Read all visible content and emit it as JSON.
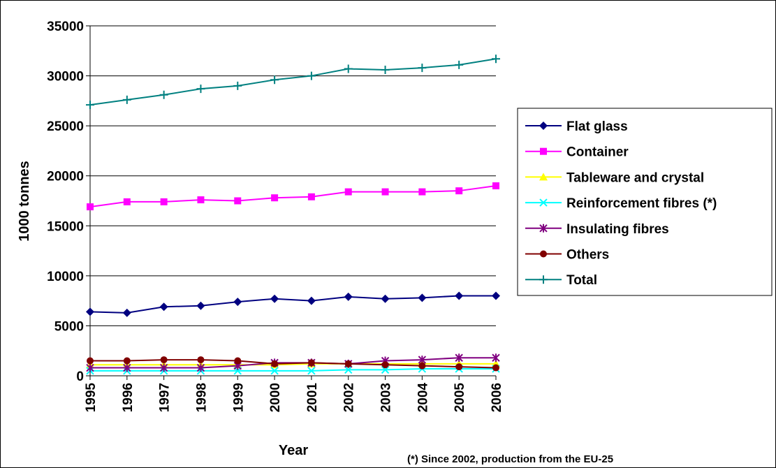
{
  "chart_data": {
    "type": "line",
    "xlabel": "Year",
    "ylabel": "1000 tonnes",
    "ylim": [
      0,
      35000
    ],
    "yticks": [
      0,
      5000,
      10000,
      15000,
      20000,
      25000,
      30000,
      35000
    ],
    "grid": "horizontal",
    "legend": "right",
    "x": [
      "1995",
      "1996",
      "1997",
      "1998",
      "1999",
      "2000",
      "2001",
      "2002",
      "2003",
      "2004",
      "2005",
      "2006"
    ],
    "series": [
      {
        "name": "Flat glass",
        "color": "#000080",
        "marker": "diamond",
        "values": [
          6400,
          6300,
          6900,
          7000,
          7400,
          7700,
          7500,
          7900,
          7700,
          7800,
          8000,
          8000
        ]
      },
      {
        "name": "Container",
        "color": "#ff00ff",
        "marker": "square",
        "values": [
          16900,
          17400,
          17400,
          17600,
          17500,
          17800,
          17900,
          18400,
          18400,
          18400,
          18500,
          19000
        ]
      },
      {
        "name": "Tableware and crystal",
        "color": "#ffff00",
        "marker": "triangle",
        "values": [
          1100,
          1100,
          1100,
          1100,
          1100,
          1100,
          1200,
          1200,
          1200,
          1200,
          1200,
          1200
        ]
      },
      {
        "name": "Reinforcement fibres (*)",
        "color": "#00ffff",
        "marker": "x",
        "values": [
          500,
          500,
          500,
          500,
          500,
          500,
          500,
          600,
          600,
          700,
          700,
          700
        ]
      },
      {
        "name": "Insulating fibres",
        "color": "#800080",
        "marker": "star",
        "values": [
          800,
          800,
          800,
          800,
          1000,
          1300,
          1300,
          1200,
          1500,
          1600,
          1800,
          1800
        ]
      },
      {
        "name": "Others",
        "color": "#800000",
        "marker": "circle",
        "values": [
          1500,
          1500,
          1600,
          1600,
          1500,
          1200,
          1300,
          1200,
          1100,
          1000,
          900,
          800
        ]
      },
      {
        "name": "Total",
        "color": "#008080",
        "marker": "plus",
        "values": [
          27100,
          27600,
          28100,
          28700,
          29000,
          29600,
          30000,
          30700,
          30600,
          30800,
          31100,
          31700
        ]
      }
    ],
    "note": "(*) Since 2002, production from the EU-25"
  }
}
